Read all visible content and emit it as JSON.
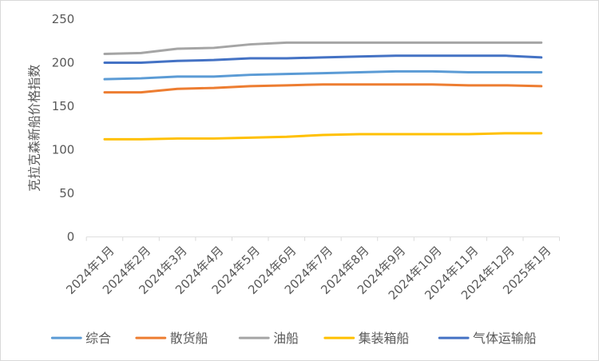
{
  "chart_data": {
    "type": "line",
    "ylabel": "克拉克森新船价格指数",
    "ylim": [
      0,
      250
    ],
    "yticks": [
      0,
      50,
      100,
      150,
      200,
      250
    ],
    "grid": false,
    "legend_position": "bottom",
    "categories": [
      "2024年1月",
      "2024年2月",
      "2024年3月",
      "2024年4月",
      "2024年5月",
      "2024年6月",
      "2024年7月",
      "2024年8月",
      "2024年9月",
      "2024年10月",
      "2024年11月",
      "2024年12月",
      "2025年1月"
    ],
    "series": [
      {
        "name": "综合",
        "color": "#5B9BD5",
        "values": [
          181,
          182,
          184,
          184,
          186,
          187,
          188,
          189,
          190,
          190,
          189,
          189,
          189
        ]
      },
      {
        "name": "散货船",
        "color": "#ED7D31",
        "values": [
          166,
          166,
          170,
          171,
          173,
          174,
          175,
          175,
          175,
          175,
          174,
          174,
          173
        ]
      },
      {
        "name": "油船",
        "color": "#A5A5A5",
        "values": [
          210,
          211,
          216,
          217,
          221,
          223,
          223,
          223,
          223,
          223,
          223,
          223,
          223
        ]
      },
      {
        "name": "集装箱船",
        "color": "#FFC000",
        "values": [
          112,
          112,
          113,
          113,
          114,
          115,
          117,
          118,
          118,
          118,
          118,
          119,
          119
        ]
      },
      {
        "name": "气体运输船",
        "color": "#4472C4",
        "values": [
          200,
          200,
          202,
          203,
          205,
          205,
          206,
          207,
          208,
          208,
          208,
          208,
          206
        ]
      }
    ]
  }
}
